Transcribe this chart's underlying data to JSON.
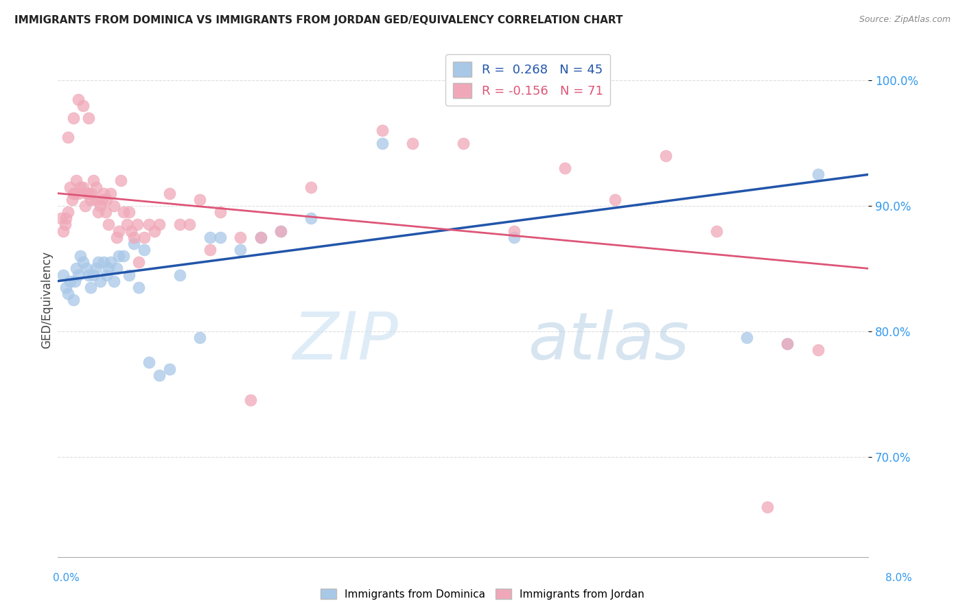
{
  "title": "IMMIGRANTS FROM DOMINICA VS IMMIGRANTS FROM JORDAN GED/EQUIVALENCY CORRELATION CHART",
  "source": "Source: ZipAtlas.com",
  "ylabel": "GED/Equivalency",
  "xmin": 0.0,
  "xmax": 8.0,
  "ymin": 62.0,
  "ymax": 103.0,
  "yticks": [
    70.0,
    80.0,
    90.0,
    100.0
  ],
  "blue_color": "#a8c8e8",
  "pink_color": "#f0a8b8",
  "blue_line_color": "#2255aa",
  "pink_line_color": "#dd5577",
  "blue_R": 0.268,
  "blue_N": 45,
  "pink_R": -0.156,
  "pink_N": 71,
  "blue_line_x0": 0.0,
  "blue_line_y0": 84.0,
  "blue_line_x1": 8.0,
  "blue_line_y1": 92.5,
  "pink_line_x0": 0.0,
  "pink_line_y0": 91.0,
  "pink_line_x1": 8.0,
  "pink_line_y1": 85.0,
  "blue_x": [
    0.05,
    0.08,
    0.1,
    0.12,
    0.15,
    0.17,
    0.18,
    0.2,
    0.22,
    0.25,
    0.28,
    0.3,
    0.32,
    0.35,
    0.38,
    0.4,
    0.42,
    0.45,
    0.48,
    0.5,
    0.52,
    0.55,
    0.58,
    0.6,
    0.65,
    0.7,
    0.75,
    0.8,
    0.85,
    0.9,
    1.0,
    1.1,
    1.2,
    1.4,
    1.5,
    1.6,
    1.8,
    2.0,
    2.2,
    2.5,
    3.2,
    4.5,
    6.8,
    7.2,
    7.5
  ],
  "blue_y": [
    84.5,
    83.5,
    83.0,
    84.0,
    82.5,
    84.0,
    85.0,
    84.5,
    86.0,
    85.5,
    85.0,
    84.5,
    83.5,
    84.5,
    85.0,
    85.5,
    84.0,
    85.5,
    84.5,
    85.0,
    85.5,
    84.0,
    85.0,
    86.0,
    86.0,
    84.5,
    87.0,
    83.5,
    86.5,
    77.5,
    76.5,
    77.0,
    84.5,
    79.5,
    87.5,
    87.5,
    86.5,
    87.5,
    88.0,
    89.0,
    95.0,
    87.5,
    79.5,
    79.0,
    92.5
  ],
  "pink_x": [
    0.03,
    0.05,
    0.07,
    0.08,
    0.1,
    0.12,
    0.14,
    0.15,
    0.17,
    0.18,
    0.2,
    0.22,
    0.25,
    0.27,
    0.28,
    0.3,
    0.32,
    0.33,
    0.35,
    0.37,
    0.38,
    0.4,
    0.42,
    0.44,
    0.45,
    0.47,
    0.48,
    0.5,
    0.52,
    0.55,
    0.58,
    0.6,
    0.62,
    0.65,
    0.68,
    0.7,
    0.72,
    0.75,
    0.78,
    0.8,
    0.85,
    0.9,
    0.95,
    1.0,
    1.1,
    1.2,
    1.3,
    1.4,
    1.5,
    1.6,
    1.8,
    1.9,
    2.0,
    2.2,
    2.5,
    3.2,
    3.5,
    4.0,
    4.5,
    5.0,
    5.5,
    6.0,
    6.5,
    7.0,
    7.2,
    7.5,
    0.1,
    0.15,
    0.2,
    0.25,
    0.3
  ],
  "pink_y": [
    89.0,
    88.0,
    88.5,
    89.0,
    89.5,
    91.5,
    90.5,
    91.0,
    91.0,
    92.0,
    91.0,
    91.5,
    91.5,
    90.0,
    91.0,
    91.0,
    90.5,
    91.0,
    92.0,
    90.5,
    91.5,
    89.5,
    90.0,
    90.5,
    91.0,
    89.5,
    90.5,
    88.5,
    91.0,
    90.0,
    87.5,
    88.0,
    92.0,
    89.5,
    88.5,
    89.5,
    88.0,
    87.5,
    88.5,
    85.5,
    87.5,
    88.5,
    88.0,
    88.5,
    91.0,
    88.5,
    88.5,
    90.5,
    86.5,
    89.5,
    87.5,
    74.5,
    87.5,
    88.0,
    91.5,
    96.0,
    95.0,
    95.0,
    88.0,
    93.0,
    90.5,
    94.0,
    88.0,
    66.0,
    79.0,
    78.5,
    95.5,
    97.0,
    98.5,
    98.0,
    97.0
  ],
  "watermark_zip": "ZIP",
  "watermark_atlas": "atlas",
  "bg_color": "#ffffff",
  "grid_color": "#dddddd",
  "legend_label1": "Immigrants from Dominica",
  "legend_label2": "Immigrants from Jordan"
}
